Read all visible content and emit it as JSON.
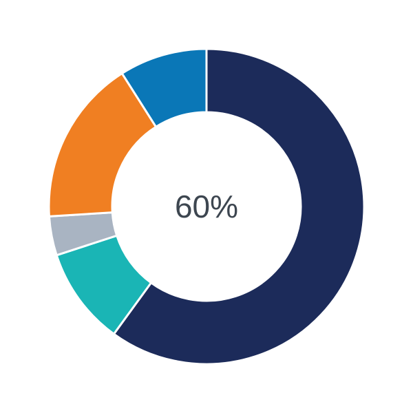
{
  "chart_data": {
    "type": "pie",
    "variant": "donut",
    "center_label": "60%",
    "slices": [
      {
        "value": 60,
        "color": "#1c2b5a"
      },
      {
        "value": 10,
        "color": "#1ab5b5"
      },
      {
        "value": 4,
        "color": "#a9b4c2"
      },
      {
        "value": 17,
        "color": "#f07f22"
      },
      {
        "value": 9,
        "color": "#0a77b7"
      }
    ],
    "start": "top",
    "direction": "clockwise",
    "legend": "none"
  }
}
